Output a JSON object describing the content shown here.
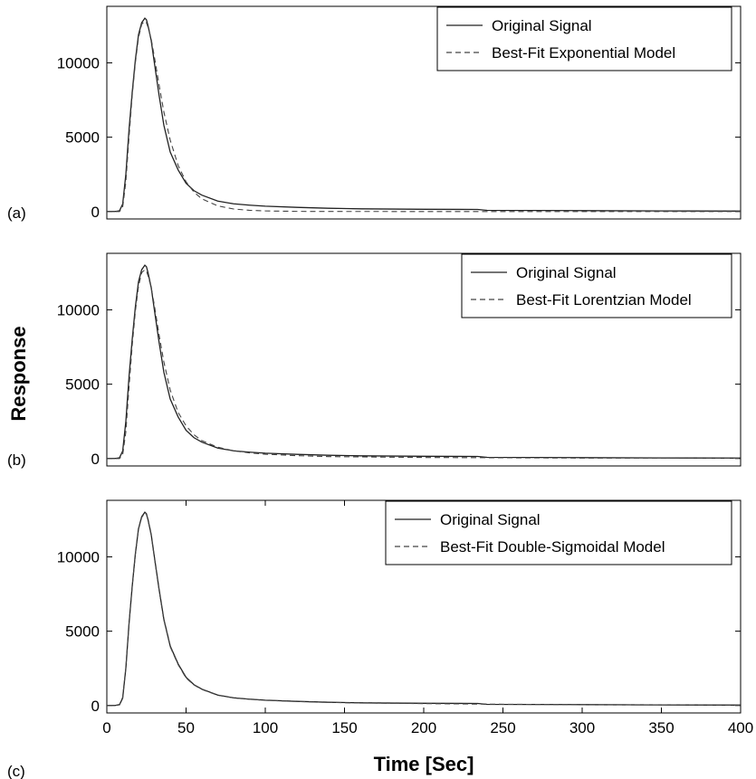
{
  "figure": {
    "ylabel": "Response",
    "xlabel": "Time [Sec]"
  },
  "chart_data": [
    {
      "type": "line",
      "panel_label": "(a)",
      "xlim": [
        0,
        400
      ],
      "ylim": [
        -500,
        13800
      ],
      "yticks": [
        0,
        5000,
        10000
      ],
      "xticks": [],
      "legend_position": "top-right",
      "series": [
        {
          "name": "Original Signal",
          "style": "solid",
          "color": "#222222",
          "x": [
            0,
            5,
            8,
            10,
            12,
            14,
            16,
            18,
            20,
            22,
            24,
            25,
            26,
            28,
            30,
            33,
            36,
            40,
            45,
            50,
            55,
            60,
            70,
            80,
            90,
            100,
            120,
            140,
            160,
            200,
            234,
            240,
            300,
            350,
            400
          ],
          "y": [
            0,
            0,
            50,
            500,
            2500,
            5500,
            8000,
            10200,
            11900,
            12700,
            13000,
            12900,
            12500,
            11500,
            10000,
            7800,
            5800,
            4000,
            2800,
            1900,
            1400,
            1100,
            700,
            520,
            430,
            360,
            280,
            220,
            180,
            150,
            140,
            80,
            60,
            40,
            30
          ]
        },
        {
          "name": "Best-Fit Exponential Model",
          "style": "dashed",
          "color": "#444444",
          "x": [
            0,
            8,
            10,
            12,
            14,
            16,
            18,
            20,
            22,
            24,
            25,
            26,
            28,
            30,
            33,
            36,
            40,
            45,
            50,
            55,
            60,
            70,
            80,
            90,
            100,
            120,
            140,
            200,
            300,
            400
          ],
          "y": [
            0,
            0,
            300,
            2000,
            5000,
            7800,
            10000,
            11700,
            12600,
            12800,
            12700,
            12400,
            11600,
            10400,
            8500,
            6700,
            4800,
            3100,
            2000,
            1300,
            850,
            380,
            170,
            80,
            40,
            10,
            3,
            0,
            0,
            0
          ]
        }
      ]
    },
    {
      "type": "line",
      "panel_label": "(b)",
      "xlim": [
        0,
        400
      ],
      "ylim": [
        -500,
        13800
      ],
      "yticks": [
        0,
        5000,
        10000
      ],
      "xticks": [],
      "legend_position": "top-right",
      "series": [
        {
          "name": "Original Signal",
          "style": "solid",
          "color": "#222222",
          "x": [
            0,
            5,
            8,
            10,
            12,
            14,
            16,
            18,
            20,
            22,
            24,
            25,
            26,
            28,
            30,
            33,
            36,
            40,
            45,
            50,
            55,
            60,
            70,
            80,
            90,
            100,
            120,
            140,
            160,
            200,
            234,
            240,
            300,
            350,
            400
          ],
          "y": [
            0,
            0,
            50,
            500,
            2500,
            5500,
            8000,
            10200,
            11900,
            12700,
            13000,
            12900,
            12500,
            11500,
            10000,
            7800,
            5800,
            4000,
            2800,
            1900,
            1400,
            1100,
            700,
            520,
            430,
            360,
            280,
            220,
            180,
            150,
            140,
            80,
            60,
            40,
            30
          ]
        },
        {
          "name": "Best-Fit Lorentzian Model",
          "style": "dashed",
          "color": "#444444",
          "x": [
            0,
            8,
            10,
            12,
            14,
            16,
            18,
            20,
            22,
            24,
            25,
            26,
            28,
            30,
            33,
            36,
            40,
            45,
            50,
            55,
            60,
            70,
            80,
            90,
            100,
            120,
            140,
            200,
            300,
            400
          ],
          "y": [
            0,
            0,
            250,
            1800,
            4800,
            7600,
            9900,
            11600,
            12500,
            12700,
            12600,
            12300,
            11500,
            10300,
            8300,
            6500,
            4600,
            3100,
            2200,
            1600,
            1200,
            760,
            520,
            380,
            290,
            190,
            130,
            70,
            30,
            20
          ]
        }
      ]
    },
    {
      "type": "line",
      "panel_label": "(c)",
      "xlim": [
        0,
        400
      ],
      "ylim": [
        -500,
        13800
      ],
      "yticks": [
        0,
        5000,
        10000
      ],
      "xticks": [
        0,
        50,
        100,
        150,
        200,
        250,
        300,
        350,
        400
      ],
      "legend_position": "top-right",
      "series": [
        {
          "name": "Original Signal",
          "style": "solid",
          "color": "#222222",
          "x": [
            0,
            5,
            8,
            10,
            12,
            14,
            16,
            18,
            20,
            22,
            24,
            25,
            26,
            28,
            30,
            33,
            36,
            40,
            45,
            50,
            55,
            60,
            70,
            80,
            90,
            100,
            120,
            140,
            160,
            200,
            234,
            240,
            300,
            350,
            400
          ],
          "y": [
            0,
            0,
            50,
            500,
            2500,
            5500,
            8000,
            10200,
            11900,
            12700,
            13000,
            12900,
            12500,
            11500,
            10000,
            7800,
            5800,
            4000,
            2800,
            1900,
            1400,
            1100,
            700,
            520,
            430,
            360,
            280,
            220,
            180,
            150,
            140,
            80,
            60,
            40,
            30
          ]
        },
        {
          "name": "Best-Fit Double-Sigmoidal Model",
          "style": "dashed",
          "color": "#444444",
          "x": [
            0,
            5,
            8,
            10,
            12,
            14,
            16,
            18,
            20,
            22,
            24,
            25,
            26,
            28,
            30,
            33,
            36,
            40,
            45,
            50,
            55,
            60,
            70,
            80,
            90,
            100,
            120,
            140,
            160,
            200,
            240,
            300,
            350,
            400
          ],
          "y": [
            0,
            0,
            80,
            550,
            2550,
            5500,
            8000,
            10150,
            11850,
            12650,
            12950,
            12850,
            12450,
            11450,
            9950,
            7750,
            5750,
            3950,
            2750,
            1850,
            1380,
            1080,
            690,
            510,
            420,
            350,
            270,
            210,
            170,
            130,
            90,
            60,
            40,
            30
          ]
        }
      ]
    }
  ]
}
